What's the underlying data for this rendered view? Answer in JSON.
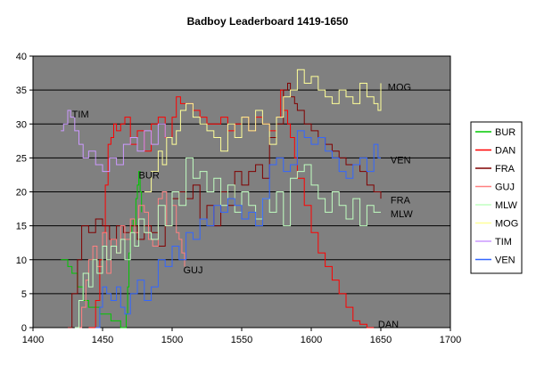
{
  "chart_data": {
    "type": "line",
    "title": "Badboy Leaderboard 1419-1650",
    "xlabel": "",
    "ylabel": "",
    "xlim": [
      1400,
      1700
    ],
    "ylim": [
      0,
      40
    ],
    "x_ticks": [
      1400,
      1450,
      1500,
      1550,
      1600,
      1650,
      1700
    ],
    "y_ticks": [
      0,
      5,
      10,
      15,
      20,
      25,
      30,
      35,
      40
    ],
    "grid": true,
    "legend_position": "right",
    "series": [
      {
        "name": "BUR",
        "color": "#00c800",
        "x": [
          1420,
          1425,
          1428,
          1432,
          1436,
          1440,
          1444,
          1448,
          1452,
          1456,
          1460,
          1463,
          1465,
          1467,
          1468,
          1469,
          1470,
          1471,
          1472,
          1473,
          1474,
          1475,
          1476,
          1477,
          1478
        ],
        "y": [
          10,
          9,
          8,
          6,
          4,
          3,
          3,
          2,
          2,
          1,
          1,
          0,
          0,
          2,
          6,
          11,
          14,
          15,
          16,
          15,
          19,
          21,
          23,
          20,
          17
        ]
      },
      {
        "name": "DAN",
        "color": "#ff0000",
        "x": [
          1440,
          1445,
          1448,
          1450,
          1452,
          1454,
          1456,
          1458,
          1460,
          1463,
          1466,
          1470,
          1475,
          1480,
          1485,
          1490,
          1495,
          1500,
          1503,
          1506,
          1510,
          1515,
          1520,
          1525,
          1530,
          1535,
          1540,
          1545,
          1550,
          1555,
          1560,
          1565,
          1570,
          1575,
          1578,
          1580,
          1583,
          1585,
          1588,
          1590,
          1595,
          1600,
          1605,
          1610,
          1615,
          1620,
          1625,
          1630,
          1635,
          1640,
          1645
        ],
        "y": [
          0,
          4,
          10,
          14,
          21,
          27,
          28,
          30,
          29,
          30,
          31,
          27,
          29,
          26,
          30,
          31,
          28,
          31,
          34,
          33,
          33,
          32,
          31,
          30,
          30,
          31,
          29,
          30,
          31,
          29,
          31,
          30,
          29,
          31,
          35,
          32,
          30,
          28,
          25,
          22,
          18,
          14,
          11,
          9,
          7,
          5,
          3,
          1,
          0.5,
          0,
          0
        ]
      },
      {
        "name": "FRA",
        "color": "#800000",
        "x": [
          1425,
          1428,
          1432,
          1435,
          1440,
          1445,
          1450,
          1455,
          1460,
          1465,
          1470,
          1475,
          1480,
          1485,
          1490,
          1495,
          1500,
          1505,
          1510,
          1515,
          1520,
          1525,
          1530,
          1535,
          1540,
          1545,
          1550,
          1555,
          1560,
          1565,
          1570,
          1575,
          1580,
          1583,
          1585,
          1588,
          1590,
          1595,
          1600,
          1605,
          1610,
          1615,
          1620,
          1625,
          1630,
          1635,
          1640,
          1645,
          1650
        ],
        "y": [
          0,
          5,
          10,
          15,
          14,
          16,
          15,
          13,
          15,
          14,
          15,
          13,
          15,
          14,
          12,
          15,
          19,
          20,
          19,
          21,
          16,
          18,
          15,
          20,
          18,
          23,
          21,
          23,
          24,
          22,
          28,
          30,
          35,
          36,
          34,
          33,
          32,
          30,
          29,
          28,
          27,
          26,
          25,
          24,
          24,
          23,
          21,
          20,
          19
        ]
      },
      {
        "name": "GUJ",
        "color": "#ff8080",
        "x": [
          1432,
          1435,
          1438,
          1440,
          1443,
          1446,
          1450,
          1453,
          1456,
          1460,
          1463,
          1466,
          1470,
          1473,
          1476,
          1480,
          1483,
          1486,
          1490,
          1493,
          1496,
          1500,
          1503,
          1505,
          1507,
          1509
        ],
        "y": [
          0,
          3,
          7,
          10,
          12,
          9,
          14,
          8,
          13,
          11,
          15,
          13,
          16,
          14,
          18,
          17,
          13,
          12,
          19,
          20,
          15,
          18,
          14,
          13,
          11,
          9
        ]
      },
      {
        "name": "MLW",
        "color": "#c0ffc0",
        "x": [
          1430,
          1433,
          1436,
          1440,
          1443,
          1446,
          1450,
          1453,
          1456,
          1460,
          1463,
          1466,
          1470,
          1473,
          1476,
          1480,
          1485,
          1490,
          1495,
          1500,
          1505,
          1510,
          1515,
          1520,
          1525,
          1530,
          1535,
          1540,
          1545,
          1550,
          1555,
          1560,
          1565,
          1570,
          1575,
          1580,
          1585,
          1590,
          1595,
          1600,
          1605,
          1610,
          1615,
          1620,
          1625,
          1630,
          1635,
          1640,
          1645,
          1650
        ],
        "y": [
          0,
          4,
          8,
          6,
          10,
          8,
          12,
          10,
          12,
          11,
          13,
          10,
          14,
          12,
          16,
          14,
          13,
          18,
          15,
          20,
          18,
          25,
          22,
          23,
          20,
          22,
          18,
          21,
          17,
          20,
          18,
          16,
          19,
          17,
          20,
          15,
          22,
          23,
          24,
          21,
          19,
          17,
          20,
          18,
          16,
          19,
          15,
          18,
          17,
          17
        ]
      },
      {
        "name": "MOG",
        "color": "#ffff99",
        "x": [
          1480,
          1485,
          1490,
          1493,
          1496,
          1500,
          1503,
          1506,
          1510,
          1515,
          1520,
          1525,
          1530,
          1535,
          1540,
          1545,
          1550,
          1555,
          1560,
          1565,
          1570,
          1575,
          1580,
          1585,
          1590,
          1595,
          1600,
          1605,
          1610,
          1615,
          1620,
          1625,
          1630,
          1635,
          1640,
          1645,
          1648,
          1650
        ],
        "y": [
          20,
          23,
          26,
          24,
          28,
          27,
          29,
          32,
          33,
          31,
          30,
          29,
          28,
          26,
          30,
          28,
          31,
          29,
          32,
          30,
          27,
          31,
          34,
          35,
          38,
          36,
          37,
          35,
          34,
          33,
          35,
          34,
          33,
          36,
          34,
          33,
          32,
          36
        ]
      },
      {
        "name": "TIM",
        "color": "#cc99ff",
        "x": [
          1420,
          1422,
          1425,
          1427,
          1430,
          1433,
          1436,
          1440,
          1445,
          1450,
          1455,
          1460,
          1465,
          1470,
          1475,
          1480,
          1485,
          1490,
          1495
        ],
        "y": [
          29,
          30,
          32,
          31,
          29,
          27,
          25,
          26,
          24,
          23,
          25,
          24,
          27,
          28,
          26,
          29,
          27,
          30,
          28
        ]
      },
      {
        "name": "VEN",
        "color": "#3366ff",
        "x": [
          1445,
          1448,
          1450,
          1453,
          1456,
          1460,
          1463,
          1466,
          1470,
          1475,
          1480,
          1485,
          1490,
          1495,
          1500,
          1505,
          1510,
          1515,
          1520,
          1525,
          1530,
          1535,
          1540,
          1545,
          1550,
          1555,
          1560,
          1565,
          1570,
          1575,
          1580,
          1585,
          1590,
          1595,
          1600,
          1605,
          1610,
          1615,
          1620,
          1625,
          1630,
          1635,
          1640,
          1645,
          1648,
          1650
        ],
        "y": [
          0,
          3,
          6,
          5,
          4,
          6,
          3,
          2,
          5,
          7,
          4,
          6,
          10,
          9,
          12,
          10,
          14,
          13,
          16,
          15,
          18,
          17,
          19,
          18,
          16,
          17,
          15,
          19,
          24,
          25,
          23,
          24,
          29,
          28,
          27,
          28,
          26,
          25,
          23,
          22,
          24,
          25,
          23,
          27,
          25,
          25
        ]
      }
    ],
    "annotations": [
      {
        "text": "TIM",
        "x": 1428,
        "y": 31.5
      },
      {
        "text": "BUR",
        "x": 1476,
        "y": 22.5
      },
      {
        "text": "GUJ",
        "x": 1508,
        "y": 8.5
      },
      {
        "text": "MOG",
        "x": 1655,
        "y": 35.5
      },
      {
        "text": "VEN",
        "x": 1657,
        "y": 24.7
      },
      {
        "text": "FRA",
        "x": 1657,
        "y": 18.8
      },
      {
        "text": "MLW",
        "x": 1657,
        "y": 16.8
      },
      {
        "text": "DAN",
        "x": 1648,
        "y": 0.5
      }
    ]
  }
}
